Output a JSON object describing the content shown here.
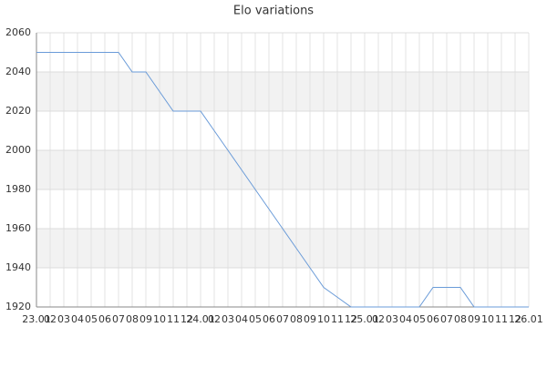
{
  "chart_data": {
    "type": "line",
    "title": "Elo variations",
    "categories": [
      "23.01",
      "02",
      "03",
      "04",
      "05",
      "06",
      "07",
      "08",
      "09",
      "10",
      "11",
      "12",
      "24.01",
      "02",
      "03",
      "04",
      "05",
      "06",
      "07",
      "08",
      "09",
      "10",
      "11",
      "12",
      "25.01",
      "02",
      "03",
      "04",
      "05",
      "06",
      "07",
      "08",
      "09",
      "10",
      "11",
      "12",
      "26.01"
    ],
    "series": [
      {
        "name": "Elo",
        "color": "#6a9bd8",
        "values": [
          2050,
          2050,
          2050,
          2050,
          2050,
          2050,
          2050,
          2040,
          2040,
          2030,
          2020,
          2020,
          2020,
          2010,
          2000,
          1990,
          1980,
          1970,
          1960,
          1950,
          1940,
          1930,
          1925,
          1920,
          1920,
          1920,
          1920,
          1920,
          1920,
          1930,
          1930,
          1930,
          1920,
          1920,
          1920,
          1920,
          1920
        ]
      }
    ],
    "ylim": [
      1920,
      2060
    ],
    "yticks": [
      1920,
      1940,
      1960,
      1980,
      2000,
      2020,
      2040,
      2060
    ],
    "grid": true
  }
}
